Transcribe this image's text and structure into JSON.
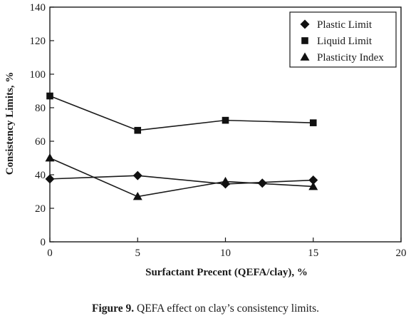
{
  "chart_data": {
    "type": "line",
    "xlabel": "Surfactant Precent (QEFA/clay), %",
    "ylabel": "Consistency Limits, %",
    "xlim": [
      0,
      20
    ],
    "ylim": [
      0,
      140
    ],
    "xticks": [
      0,
      5,
      10,
      15,
      20
    ],
    "yticks": [
      0,
      20,
      40,
      60,
      80,
      100,
      120,
      140
    ],
    "grid": false,
    "legend_position": "top-right",
    "series": [
      {
        "name": "Plastic Limit",
        "marker": "diamond",
        "x": [
          0,
          5,
          10,
          15
        ],
        "y": [
          37.5,
          39.5,
          34.5,
          36.8
        ]
      },
      {
        "name": "Liquid Limit",
        "marker": "square",
        "x": [
          0,
          5,
          10,
          15
        ],
        "y": [
          87,
          66.5,
          72.5,
          71
        ]
      },
      {
        "name": "Plasticity Index",
        "marker": "triangle",
        "x": [
          0,
          5,
          10,
          15
        ],
        "y": [
          50,
          27,
          36,
          33
        ]
      }
    ],
    "annotations": [
      {
        "series": "Plastic Limit",
        "marker": "diamond",
        "x": 12.1,
        "y": 35
      }
    ]
  },
  "caption": {
    "label": "Figure 9.",
    "text": " QEFA effect on clay’s consistency limits."
  }
}
